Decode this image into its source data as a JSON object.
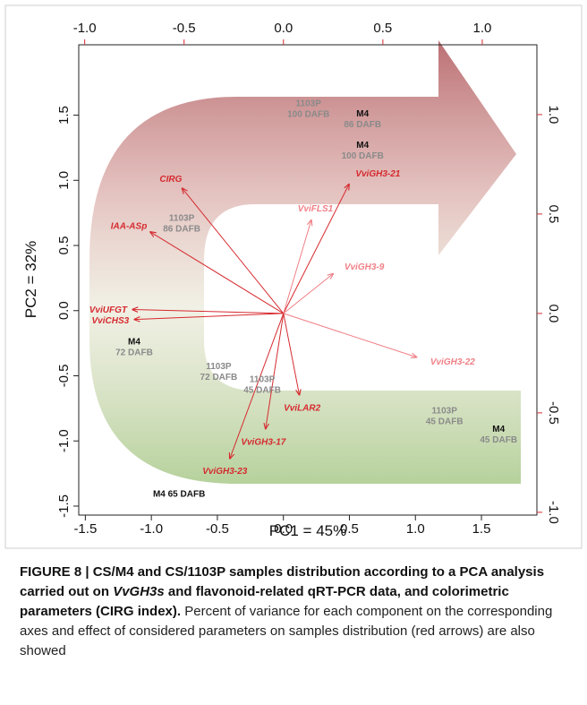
{
  "chart_data": {
    "type": "biplot",
    "xlabel": "PC1 = 45%",
    "ylabel": "PC2 = 32%",
    "xlim": [
      -1.55,
      1.92
    ],
    "xticks": [
      -1.5,
      {
        "value": -1,
        "label": "-1.0"
      },
      -0.5,
      {
        "value": 0,
        "label": "0.0"
      },
      0.5,
      {
        "value": 1,
        "label": "1.0"
      },
      1.5
    ],
    "ylim": [
      -1.569,
      2.04
    ],
    "yticks": [
      -1.5,
      {
        "value": -1,
        "label": "-1.0"
      },
      -0.5,
      {
        "value": 0,
        "label": "0.0"
      },
      0.5,
      {
        "value": 1,
        "label": "1.0"
      },
      1.5
    ],
    "x2lim": [
      -1.03,
      1.275
    ],
    "x2ticks": [
      {
        "value": -1,
        "label": "-1.0"
      },
      -0.5,
      {
        "value": 0,
        "label": "0.0"
      },
      0.5,
      {
        "value": 1,
        "label": "1.0"
      }
    ],
    "y2lim": [
      -1.014,
      1.351
    ],
    "y2ticks": [
      {
        "value": -1,
        "label": "-1.0"
      },
      -0.5,
      {
        "value": 0,
        "label": "0.0"
      },
      0.5,
      {
        "value": 1,
        "label": "1.0"
      }
    ],
    "points": {
      "labels": [
        [
          "1103P",
          "100 DAFB"
        ],
        [
          "M4",
          "86 DAFB"
        ],
        [
          "M4",
          "100 DAFB"
        ],
        [
          "1103P",
          "86 DAFB"
        ],
        [
          "M4",
          "72 DAFB"
        ],
        [
          "1103P",
          "72 DAFB"
        ],
        [
          "1103P",
          "45 DAFB"
        ],
        [
          "1103P",
          "45 DAFB"
        ],
        [
          "M4",
          "45 DAFB"
        ],
        [
          "M4 65 DAFB"
        ]
      ],
      "x": [
        0.19,
        0.6,
        0.6,
        -0.77,
        -1.13,
        -0.49,
        -0.16,
        1.22,
        1.63,
        -0.79
      ],
      "y": [
        1.55,
        1.47,
        1.23,
        0.67,
        -0.28,
        -0.47,
        -0.57,
        -0.81,
        -0.95,
        -1.4
      ]
    },
    "loadings": {
      "names": [
        "CIRG",
        "IAA-ASp",
        "VviUFGT",
        "VviCHS3",
        "VviGH3-21",
        "VviFLS1",
        "VviGH3-9",
        "VviGH3-22",
        "VviLAR2",
        "VviGH3-17",
        "VviGH3-23"
      ],
      "x": [
        -0.51,
        -0.67,
        -0.76,
        -0.75,
        0.33,
        0.14,
        0.25,
        0.67,
        0.08,
        -0.09,
        -0.27
      ],
      "y": [
        0.63,
        0.41,
        0.02,
        -0.03,
        0.65,
        0.47,
        0.2,
        -0.22,
        -0.41,
        -0.58,
        -0.73
      ],
      "colors": [
        "#d62a2f",
        "#d62a2f",
        "#d62a2f",
        "#d62a2f",
        "#d62a2f",
        "#f07f86",
        "#f07f86",
        "#f07f86",
        "#d62a2f",
        "#d62a2f",
        "#d62a2f"
      ]
    }
  },
  "caption": {
    "title_start": "FIGURE 8 | CS/M4 and CS/1103P samples distribution according to a PCA analysis carried out on ",
    "title_italic": "VvGH3s",
    "title_end": " and flavonoid-related qRT-PCR data, and colorimetric parameters (CIRG index).",
    "text": " Percent of variance for each component on the corresponding axes and effect of considered parameters on samples distribution (red arrows) are also showed"
  }
}
